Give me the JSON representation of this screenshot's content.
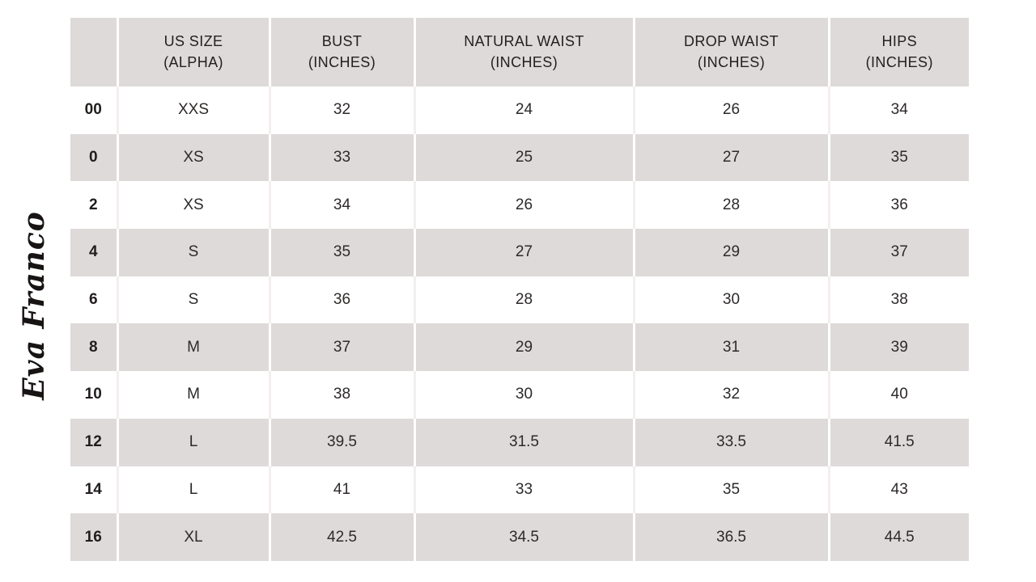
{
  "brand": {
    "logo_text": "Eva Franco"
  },
  "colors": {
    "header_bg": "#dedad9",
    "alt_row_bg": "#dedad9",
    "row_bg": "#ffffff",
    "divider": "#ffffff",
    "text": "#2d2a29"
  },
  "chart_data": {
    "type": "table",
    "columns": [
      {
        "line1": "",
        "line2": ""
      },
      {
        "line1": "US SIZE",
        "line2": "(ALPHA)"
      },
      {
        "line1": "BUST",
        "line2": "(INCHES)"
      },
      {
        "line1": "NATURAL WAIST",
        "line2": "(INCHES)"
      },
      {
        "line1": "DROP WAIST",
        "line2": "(INCHES)"
      },
      {
        "line1": "HIPS",
        "line2": "(INCHES)"
      }
    ],
    "rows": [
      [
        "00",
        "XXS",
        "32",
        "24",
        "26",
        "34"
      ],
      [
        "0",
        "XS",
        "33",
        "25",
        "27",
        "35"
      ],
      [
        "2",
        "XS",
        "34",
        "26",
        "28",
        "36"
      ],
      [
        "4",
        "S",
        "35",
        "27",
        "29",
        "37"
      ],
      [
        "6",
        "S",
        "36",
        "28",
        "30",
        "38"
      ],
      [
        "8",
        "M",
        "37",
        "29",
        "31",
        "39"
      ],
      [
        "10",
        "M",
        "38",
        "30",
        "32",
        "40"
      ],
      [
        "12",
        "L",
        "39.5",
        "31.5",
        "33.5",
        "41.5"
      ],
      [
        "14",
        "L",
        "41",
        "33",
        "35",
        "43"
      ],
      [
        "16",
        "XL",
        "42.5",
        "34.5",
        "36.5",
        "44.5"
      ]
    ]
  }
}
